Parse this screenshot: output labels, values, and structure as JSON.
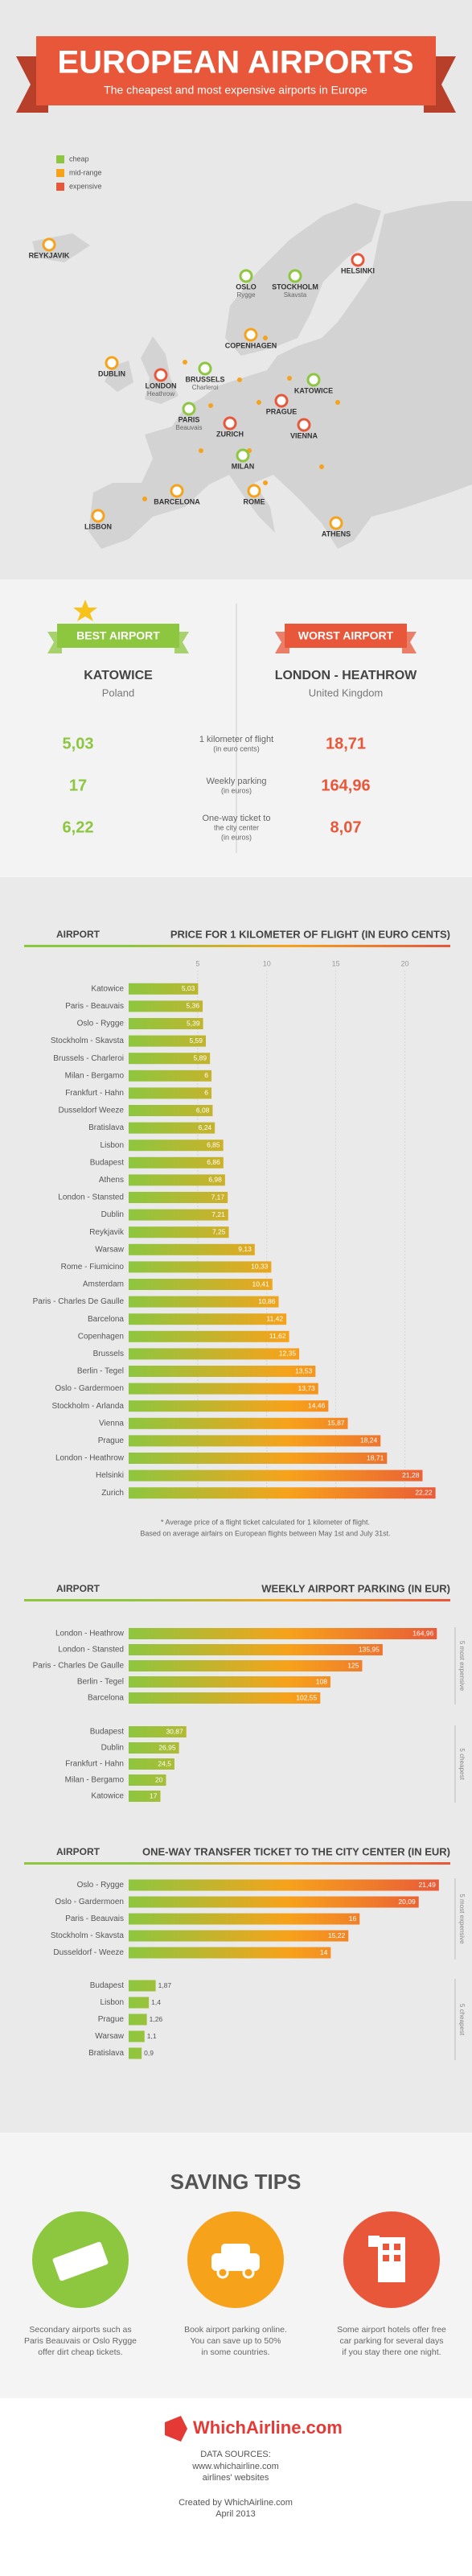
{
  "header": {
    "title": "EUROPEAN AIRPORTS",
    "subtitle": "The cheapest and most expensive airports in Europe"
  },
  "legend": [
    {
      "label": "cheap",
      "color": "#8dc63f"
    },
    {
      "label": "mid-range",
      "color": "#f7a21b"
    },
    {
      "label": "expensive",
      "color": "#e8573a"
    }
  ],
  "map": {
    "cities": [
      {
        "name": "REYKJAVIK",
        "color": "#f7a21b"
      },
      {
        "name": "OSLO",
        "sub": "Rygge",
        "color": "#8dc63f"
      },
      {
        "name": "STOCKHOLM",
        "sub": "Skavsta",
        "color": "#8dc63f"
      },
      {
        "name": "HELSINKI",
        "color": "#e8573a"
      },
      {
        "name": "COPENHAGEN",
        "color": "#f7a21b"
      },
      {
        "name": "DUBLIN",
        "color": "#f7a21b"
      },
      {
        "name": "LONDON",
        "sub": "Heathrow",
        "color": "#e8573a"
      },
      {
        "name": "BRUSSELS",
        "sub": "Charleroi",
        "color": "#8dc63f"
      },
      {
        "name": "KATOWICE",
        "color": "#8dc63f"
      },
      {
        "name": "PARIS",
        "sub": "Beauvais",
        "color": "#8dc63f"
      },
      {
        "name": "PRAGUE",
        "color": "#e8573a"
      },
      {
        "name": "ZURICH",
        "color": "#e8573a"
      },
      {
        "name": "VIENNA",
        "color": "#e8573a"
      },
      {
        "name": "MILAN",
        "color": "#8dc63f"
      },
      {
        "name": "BARCELONA",
        "color": "#f7a21b"
      },
      {
        "name": "ROME",
        "color": "#f7a21b"
      },
      {
        "name": "LISBON",
        "color": "#f7a21b"
      },
      {
        "name": "ATHENS",
        "color": "#f7a21b"
      }
    ]
  },
  "comparison": {
    "best": {
      "badge": "BEST AIRPORT",
      "name": "KATOWICE",
      "country": "Poland",
      "color": "#8dc63f"
    },
    "worst": {
      "badge": "WORST AIRPORT",
      "name": "LONDON - HEATHROW",
      "country": "United Kingdom",
      "color": "#e8573a"
    },
    "rows": [
      {
        "best": "5,03",
        "label": "1 kilometer of flight",
        "unit": "(in euro cents)",
        "worst": "18,71"
      },
      {
        "best": "17",
        "label": "Weekly parking",
        "unit": "(in euros)",
        "worst": "164,96"
      },
      {
        "best": "6,22",
        "label": "One-way ticket to",
        "unit": "the city center",
        "unit2": "(in euros)",
        "worst": "8,07"
      }
    ]
  },
  "chart_data": [
    {
      "type": "bar",
      "orientation": "horizontal",
      "category_header": "AIRPORT",
      "title": "PRICE FOR 1 KILOMETER OF FLIGHT (IN EURO CENTS)",
      "color_scale": [
        "#8dc63f",
        "#f7a21b",
        "#e8573a"
      ],
      "xlim": [
        0,
        23
      ],
      "xticks": [
        5,
        10,
        15,
        20
      ],
      "grid": true,
      "groups": [
        {
          "categories": [
            "Katowice",
            "Paris - Beauvais",
            "Oslo - Rygge",
            "Stockholm - Skavsta",
            "Brussels - Charleroi",
            "Milan - Bergamo",
            "Frankfurt - Hahn",
            "Dusseldorf Weeze",
            "Bratislava",
            "Lisbon",
            "Budapest",
            "Athens",
            "London - Stansted",
            "Dublin",
            "Reykjavik",
            "Warsaw",
            "Rome - Fiumicino",
            "Amsterdam",
            "Paris - Charles De Gaulle",
            "Barcelona",
            "Copenhagen",
            "Brussels",
            "Berlin - Tegel",
            "Oslo - Gardermoen",
            "Stockholm - Arlanda",
            "Vienna",
            "Prague",
            "London - Heathrow",
            "Helsinki",
            "Zurich"
          ],
          "values": [
            5.03,
            5.36,
            5.39,
            5.59,
            5.89,
            6,
            6,
            6.08,
            6.24,
            6.85,
            6.86,
            6.98,
            7.17,
            7.21,
            7.25,
            9.13,
            10.33,
            10.41,
            10.86,
            11.42,
            11.62,
            12.35,
            13.53,
            13.73,
            14.46,
            15.87,
            18.24,
            18.71,
            21.28,
            22.22
          ],
          "value_labels": [
            "5,03",
            "5,36",
            "5,39",
            "5,59",
            "5,89",
            "6",
            "6",
            "6,08",
            "6,24",
            "6,85",
            "6,86",
            "6,98",
            "7,17",
            "7,21",
            "7,25",
            "9,13",
            "10,33",
            "10,41",
            "10,86",
            "11,42",
            "11,62",
            "12,35",
            "13,53",
            "13,73",
            "14,46",
            "15,87",
            "18,24",
            "18,71",
            "21,28",
            "22,22"
          ]
        }
      ],
      "notes": [
        "* Average price of a flight ticket calculated for 1 kilometer of flight.",
        "Based on average airfairs on European flights between May 1st and July 31st."
      ]
    },
    {
      "type": "bar",
      "orientation": "horizontal",
      "category_header": "AIRPORT",
      "title": "WEEKLY AIRPORT PARKING (IN EUR)",
      "color_scale": [
        "#8dc63f",
        "#f7a21b",
        "#e8573a"
      ],
      "xlim": [
        0,
        170
      ],
      "groups": [
        {
          "label": "5 most expensive",
          "categories": [
            "London - Heathrow",
            "London - Stansted",
            "Paris - Charles De Gaulle",
            "Berlin - Tegel",
            "Barcelona"
          ],
          "values": [
            164.96,
            135.95,
            125,
            108,
            102.55
          ],
          "value_labels": [
            "164,96",
            "135,95",
            "125",
            "108",
            "102,55"
          ]
        },
        {
          "label": "5 cheapest",
          "categories": [
            "Budapest",
            "Dublin",
            "Frankfurt - Hahn",
            "Milan - Bergamo",
            "Katowice"
          ],
          "values": [
            30.87,
            26.95,
            24.5,
            20,
            17
          ],
          "value_labels": [
            "30,87",
            "26,95",
            "24,5",
            "20",
            "17"
          ]
        }
      ]
    },
    {
      "type": "bar",
      "orientation": "horizontal",
      "category_header": "AIRPORT",
      "title": "ONE-WAY TRANSFER TICKET TO THE CITY CENTER (IN EUR)",
      "color_scale": [
        "#8dc63f",
        "#f7a21b",
        "#e8573a"
      ],
      "xlim": [
        0,
        22
      ],
      "groups": [
        {
          "label": "5 most expensive",
          "categories": [
            "Oslo - Rygge",
            "Oslo - Gardermoen",
            "Paris - Beauvais",
            "Stockholm - Skavsta",
            "Dusseldorf - Weeze"
          ],
          "values": [
            21.49,
            20.09,
            16,
            15.22,
            14
          ],
          "value_labels": [
            "21,49",
            "20,09",
            "16",
            "15,22",
            "14"
          ]
        },
        {
          "label": "5 cheapest",
          "categories": [
            "Budapest",
            "Lisbon",
            "Prague",
            "Warsaw",
            "Bratislava"
          ],
          "values": [
            1.87,
            1.4,
            1.26,
            1.1,
            0.9
          ],
          "value_labels": [
            "1,87",
            "1,4",
            "1,26",
            "1,1",
            "0,9"
          ]
        }
      ]
    }
  ],
  "tips": {
    "title": "SAVING TIPS",
    "items": [
      {
        "lines": [
          "Secondary airports such as",
          "Paris Beauvais or Oslo Rygge",
          "offer dirt cheap tickets."
        ],
        "color": "#8dc63f"
      },
      {
        "lines": [
          "Book airport parking online.",
          "You can save up to 50%",
          "in some countries."
        ],
        "color": "#f7a21b"
      },
      {
        "lines": [
          "Some airport hotels offer free",
          "car parking for several days",
          "if you stay there one night."
        ],
        "color": "#e8573a"
      }
    ]
  },
  "footer": {
    "logo": "WhichAirline.com",
    "sources_title": "DATA SOURCES:",
    "sources": [
      "www.whichairline.com",
      "airlines' websites"
    ],
    "credit": "Created by WhichAirline.com",
    "date": "April 2013"
  }
}
